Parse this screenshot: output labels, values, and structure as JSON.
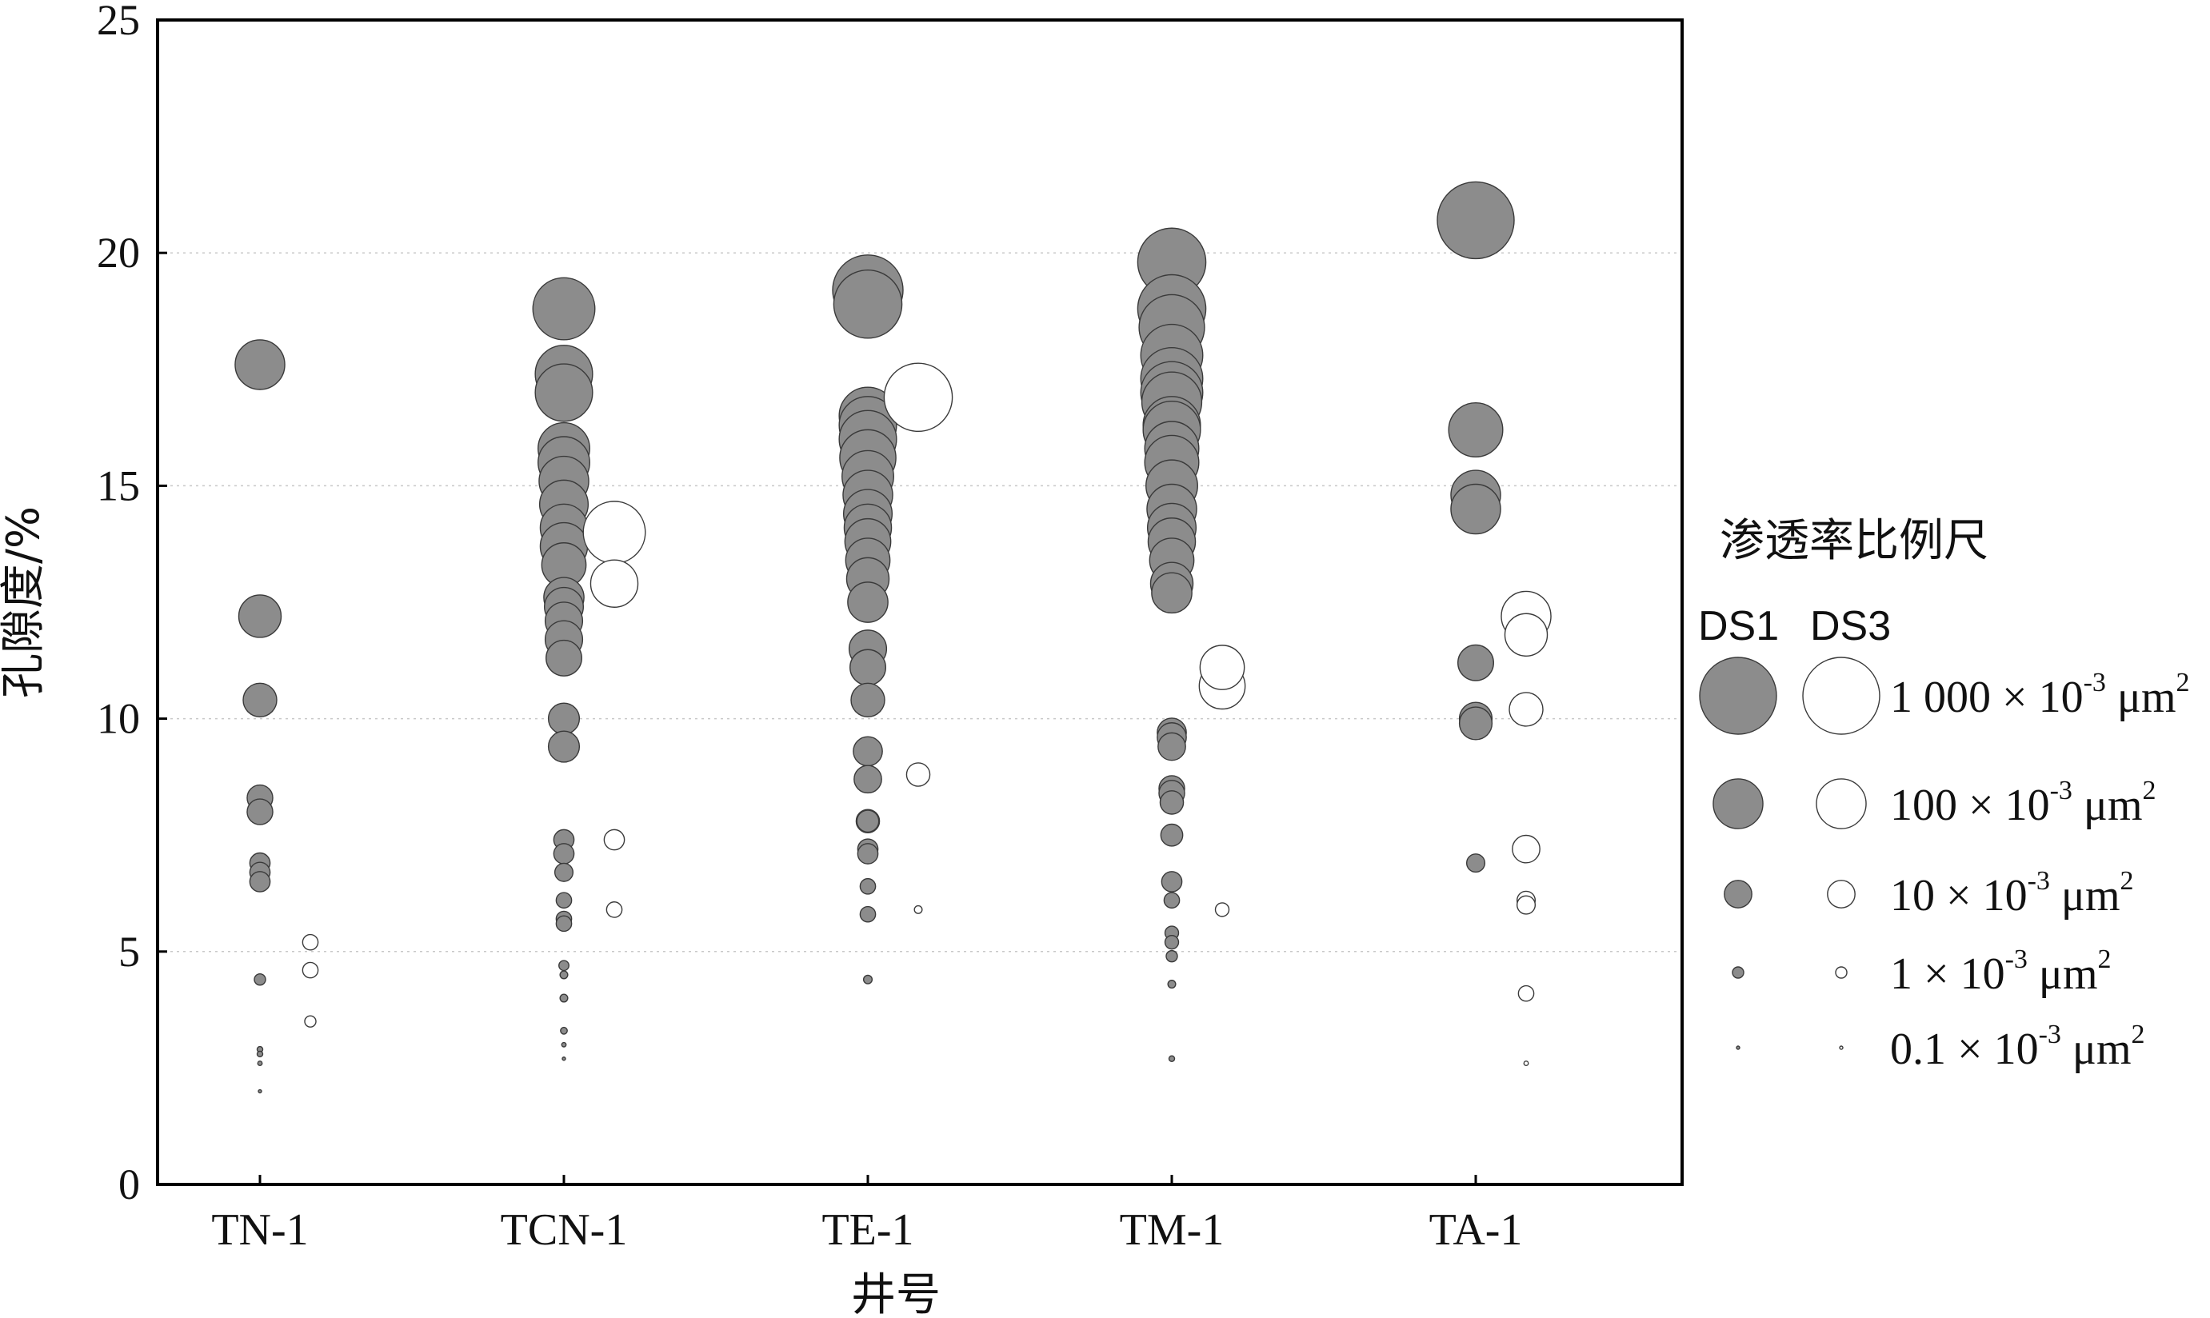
{
  "chart_data": {
    "type": "scatter",
    "subtype": "bubble",
    "xlabel": "井号",
    "ylabel": "孔隙度/%",
    "ylim": [
      0,
      25
    ],
    "yticks": [
      0,
      5,
      10,
      15,
      20,
      25
    ],
    "grid": "horizontal dotted",
    "categories": [
      "TN-1",
      "TCN-1",
      "TE-1",
      "TM-1",
      "TA-1"
    ],
    "legend": {
      "title": "渗透率比例尺",
      "position": "right",
      "col_ds1": "DS1",
      "col_ds3": "DS3",
      "entries": [
        {
          "value": 1000,
          "coef": "1 000",
          "exp": "-3",
          "unit": "μm",
          "unit_exp": "2"
        },
        {
          "value": 100,
          "coef": "100",
          "exp": "-3",
          "unit": "μm",
          "unit_exp": "2"
        },
        {
          "value": 10,
          "coef": "10",
          "exp": "-3",
          "unit": "μm",
          "unit_exp": "2"
        },
        {
          "value": 1,
          "coef": "1",
          "exp": "-3",
          "unit": "μm",
          "unit_exp": "2"
        },
        {
          "value": 0.1,
          "coef": "0.1",
          "exp": "-3",
          "unit": "μm",
          "unit_exp": "2"
        }
      ],
      "times_symbol": "×",
      "base": "10"
    },
    "series": [
      {
        "name": "DS1",
        "fill": "#8c8c8c",
        "stroke": "#3a3a3a",
        "points": [
          {
            "well": "TN-1",
            "porosity": 17.6,
            "perm": 100
          },
          {
            "well": "TN-1",
            "porosity": 12.2,
            "perm": 50
          },
          {
            "well": "TN-1",
            "porosity": 10.4,
            "perm": 20
          },
          {
            "well": "TN-1",
            "porosity": 8.3,
            "perm": 8
          },
          {
            "well": "TN-1",
            "porosity": 8.0,
            "perm": 8
          },
          {
            "well": "TN-1",
            "porosity": 6.9,
            "perm": 4
          },
          {
            "well": "TN-1",
            "porosity": 6.7,
            "perm": 4
          },
          {
            "well": "TN-1",
            "porosity": 6.5,
            "perm": 4
          },
          {
            "well": "TN-1",
            "porosity": 4.4,
            "perm": 1
          },
          {
            "well": "TN-1",
            "porosity": 2.9,
            "perm": 0.3
          },
          {
            "well": "TN-1",
            "porosity": 2.8,
            "perm": 0.3
          },
          {
            "well": "TN-1",
            "porosity": 2.6,
            "perm": 0.2
          },
          {
            "well": "TN-1",
            "porosity": 2.0,
            "perm": 0.1
          },
          {
            "well": "TCN-1",
            "porosity": 18.8,
            "perm": 300
          },
          {
            "well": "TCN-1",
            "porosity": 17.4,
            "perm": 200
          },
          {
            "well": "TCN-1",
            "porosity": 17.0,
            "perm": 200
          },
          {
            "well": "TCN-1",
            "porosity": 15.8,
            "perm": 120
          },
          {
            "well": "TCN-1",
            "porosity": 15.5,
            "perm": 120
          },
          {
            "well": "TCN-1",
            "porosity": 15.1,
            "perm": 100
          },
          {
            "well": "TCN-1",
            "porosity": 14.6,
            "perm": 90
          },
          {
            "well": "TCN-1",
            "porosity": 14.1,
            "perm": 80
          },
          {
            "well": "TCN-1",
            "porosity": 13.7,
            "perm": 80
          },
          {
            "well": "TCN-1",
            "porosity": 13.3,
            "perm": 60
          },
          {
            "well": "TCN-1",
            "porosity": 12.6,
            "perm": 40
          },
          {
            "well": "TCN-1",
            "porosity": 12.4,
            "perm": 35
          },
          {
            "well": "TCN-1",
            "porosity": 12.1,
            "perm": 30
          },
          {
            "well": "TCN-1",
            "porosity": 11.7,
            "perm": 30
          },
          {
            "well": "TCN-1",
            "porosity": 11.3,
            "perm": 25
          },
          {
            "well": "TCN-1",
            "porosity": 10.0,
            "perm": 15
          },
          {
            "well": "TCN-1",
            "porosity": 9.4,
            "perm": 15
          },
          {
            "well": "TCN-1",
            "porosity": 7.4,
            "perm": 4
          },
          {
            "well": "TCN-1",
            "porosity": 7.1,
            "perm": 4
          },
          {
            "well": "TCN-1",
            "porosity": 6.7,
            "perm": 3
          },
          {
            "well": "TCN-1",
            "porosity": 6.1,
            "perm": 2
          },
          {
            "well": "TCN-1",
            "porosity": 5.7,
            "perm": 2
          },
          {
            "well": "TCN-1",
            "porosity": 5.6,
            "perm": 2
          },
          {
            "well": "TCN-1",
            "porosity": 4.7,
            "perm": 0.8
          },
          {
            "well": "TCN-1",
            "porosity": 4.5,
            "perm": 0.5
          },
          {
            "well": "TCN-1",
            "porosity": 4.0,
            "perm": 0.5
          },
          {
            "well": "TCN-1",
            "porosity": 3.3,
            "perm": 0.4
          },
          {
            "well": "TCN-1",
            "porosity": 3.0,
            "perm": 0.2
          },
          {
            "well": "TCN-1",
            "porosity": 2.7,
            "perm": 0.1
          },
          {
            "well": "TE-1",
            "porosity": 19.2,
            "perm": 600
          },
          {
            "well": "TE-1",
            "porosity": 18.9,
            "perm": 500
          },
          {
            "well": "TE-1",
            "porosity": 16.5,
            "perm": 200
          },
          {
            "well": "TE-1",
            "porosity": 16.3,
            "perm": 200
          },
          {
            "well": "TE-1",
            "porosity": 16.0,
            "perm": 200
          },
          {
            "well": "TE-1",
            "porosity": 15.6,
            "perm": 180
          },
          {
            "well": "TE-1",
            "porosity": 15.2,
            "perm": 120
          },
          {
            "well": "TE-1",
            "porosity": 14.8,
            "perm": 100
          },
          {
            "well": "TE-1",
            "porosity": 14.4,
            "perm": 90
          },
          {
            "well": "TE-1",
            "porosity": 14.1,
            "perm": 80
          },
          {
            "well": "TE-1",
            "porosity": 13.8,
            "perm": 70
          },
          {
            "well": "TE-1",
            "porosity": 13.4,
            "perm": 60
          },
          {
            "well": "TE-1",
            "porosity": 13.0,
            "perm": 50
          },
          {
            "well": "TE-1",
            "porosity": 12.5,
            "perm": 40
          },
          {
            "well": "TE-1",
            "porosity": 11.5,
            "perm": 30
          },
          {
            "well": "TE-1",
            "porosity": 11.1,
            "perm": 25
          },
          {
            "well": "TE-1",
            "porosity": 10.4,
            "perm": 20
          },
          {
            "well": "TE-1",
            "porosity": 9.3,
            "perm": 12
          },
          {
            "well": "TE-1",
            "porosity": 8.7,
            "perm": 10
          },
          {
            "well": "TE-1",
            "porosity": 7.8,
            "perm": 6
          },
          {
            "well": "TE-1",
            "porosity": 7.8,
            "perm": 5
          },
          {
            "well": "TE-1",
            "porosity": 7.2,
            "perm": 4
          },
          {
            "well": "TE-1",
            "porosity": 7.1,
            "perm": 4
          },
          {
            "well": "TE-1",
            "porosity": 6.4,
            "perm": 2
          },
          {
            "well": "TE-1",
            "porosity": 5.8,
            "perm": 2
          },
          {
            "well": "TE-1",
            "porosity": 4.4,
            "perm": 0.6
          },
          {
            "well": "TM-1",
            "porosity": 19.8,
            "perm": 500
          },
          {
            "well": "TM-1",
            "porosity": 18.8,
            "perm": 500
          },
          {
            "well": "TM-1",
            "porosity": 18.4,
            "perm": 400
          },
          {
            "well": "TM-1",
            "porosity": 17.8,
            "perm": 300
          },
          {
            "well": "TM-1",
            "porosity": 17.3,
            "perm": 300
          },
          {
            "well": "TM-1",
            "porosity": 17.0,
            "perm": 300
          },
          {
            "well": "TM-1",
            "porosity": 16.8,
            "perm": 250
          },
          {
            "well": "TM-1",
            "porosity": 16.3,
            "perm": 200
          },
          {
            "well": "TM-1",
            "porosity": 16.2,
            "perm": 200
          },
          {
            "well": "TM-1",
            "porosity": 15.8,
            "perm": 150
          },
          {
            "well": "TM-1",
            "porosity": 15.5,
            "perm": 150
          },
          {
            "well": "TM-1",
            "porosity": 15.0,
            "perm": 120
          },
          {
            "well": "TM-1",
            "porosity": 14.5,
            "perm": 100
          },
          {
            "well": "TM-1",
            "porosity": 14.1,
            "perm": 90
          },
          {
            "well": "TM-1",
            "porosity": 13.8,
            "perm": 80
          },
          {
            "well": "TM-1",
            "porosity": 13.4,
            "perm": 60
          },
          {
            "well": "TM-1",
            "porosity": 12.9,
            "perm": 50
          },
          {
            "well": "TM-1",
            "porosity": 12.7,
            "perm": 40
          },
          {
            "well": "TM-1",
            "porosity": 9.7,
            "perm": 12
          },
          {
            "well": "TM-1",
            "porosity": 9.6,
            "perm": 12
          },
          {
            "well": "TM-1",
            "porosity": 9.4,
            "perm": 10
          },
          {
            "well": "TM-1",
            "porosity": 8.5,
            "perm": 8
          },
          {
            "well": "TM-1",
            "porosity": 8.4,
            "perm": 8
          },
          {
            "well": "TM-1",
            "porosity": 8.2,
            "perm": 6
          },
          {
            "well": "TM-1",
            "porosity": 7.5,
            "perm": 5
          },
          {
            "well": "TM-1",
            "porosity": 6.5,
            "perm": 4
          },
          {
            "well": "TM-1",
            "porosity": 6.1,
            "perm": 2
          },
          {
            "well": "TM-1",
            "porosity": 5.4,
            "perm": 1.5
          },
          {
            "well": "TM-1",
            "porosity": 5.2,
            "perm": 1.5
          },
          {
            "well": "TM-1",
            "porosity": 4.9,
            "perm": 1
          },
          {
            "well": "TM-1",
            "porosity": 4.3,
            "perm": 0.5
          },
          {
            "well": "TM-1",
            "porosity": 2.7,
            "perm": 0.3
          },
          {
            "well": "TA-1",
            "porosity": 20.7,
            "perm": 1000
          },
          {
            "well": "TA-1",
            "porosity": 16.2,
            "perm": 150
          },
          {
            "well": "TA-1",
            "porosity": 14.8,
            "perm": 100
          },
          {
            "well": "TA-1",
            "porosity": 14.5,
            "perm": 100
          },
          {
            "well": "TA-1",
            "porosity": 11.2,
            "perm": 25
          },
          {
            "well": "TA-1",
            "porosity": 10.0,
            "perm": 18
          },
          {
            "well": "TA-1",
            "porosity": 9.9,
            "perm": 18
          },
          {
            "well": "TA-1",
            "porosity": 6.9,
            "perm": 3
          }
        ]
      },
      {
        "name": "DS3",
        "fill": "#ffffff",
        "stroke": "#3a3a3a",
        "points": [
          {
            "well": "TN-1",
            "porosity": 5.2,
            "perm": 2
          },
          {
            "well": "TN-1",
            "porosity": 4.6,
            "perm": 2
          },
          {
            "well": "TN-1",
            "porosity": 3.5,
            "perm": 1
          },
          {
            "well": "TCN-1",
            "porosity": 14.0,
            "perm": 300
          },
          {
            "well": "TCN-1",
            "porosity": 12.9,
            "perm": 80
          },
          {
            "well": "TCN-1",
            "porosity": 7.4,
            "perm": 4
          },
          {
            "well": "TCN-1",
            "porosity": 5.9,
            "perm": 2
          },
          {
            "well": "TE-1",
            "porosity": 16.9,
            "perm": 500
          },
          {
            "well": "TE-1",
            "porosity": 8.8,
            "perm": 6
          },
          {
            "well": "TE-1",
            "porosity": 5.9,
            "perm": 0.5
          },
          {
            "well": "TM-1",
            "porosity": 11.1,
            "perm": 60
          },
          {
            "well": "TM-1",
            "porosity": 10.7,
            "perm": 70
          },
          {
            "well": "TM-1",
            "porosity": 5.9,
            "perm": 1.5
          },
          {
            "well": "TA-1",
            "porosity": 12.2,
            "perm": 100
          },
          {
            "well": "TA-1",
            "porosity": 11.8,
            "perm": 50
          },
          {
            "well": "TA-1",
            "porosity": 10.2,
            "perm": 20
          },
          {
            "well": "TA-1",
            "porosity": 7.2,
            "perm": 10
          },
          {
            "well": "TA-1",
            "porosity": 6.1,
            "perm": 3
          },
          {
            "well": "TA-1",
            "porosity": 6.0,
            "perm": 3
          },
          {
            "well": "TA-1",
            "porosity": 4.1,
            "perm": 2
          },
          {
            "well": "TA-1",
            "porosity": 2.6,
            "perm": 0.2
          }
        ]
      }
    ]
  }
}
